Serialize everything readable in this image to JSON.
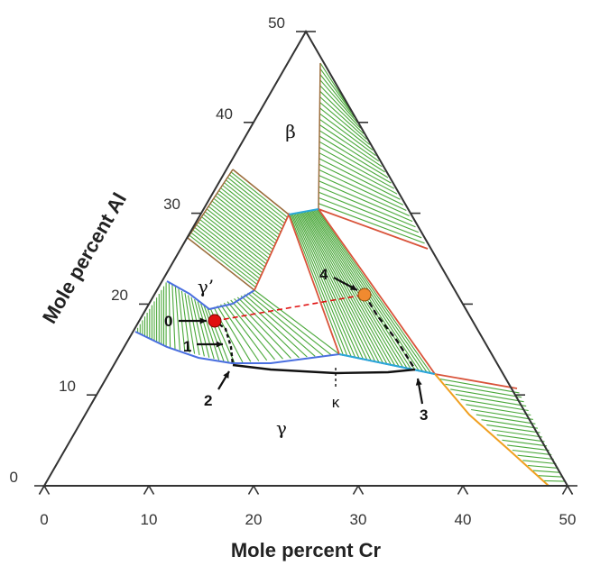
{
  "axes": {
    "x_label": "Mole percent Cr",
    "y_label": "Mole percent Al",
    "x_ticks": [
      "0",
      "10",
      "20",
      "30",
      "40",
      "50"
    ],
    "y_ticks": [
      "0",
      "10",
      "20",
      "30",
      "40",
      "50"
    ]
  },
  "phases": {
    "beta": "β",
    "gamma_prime": "γ’",
    "gamma": "γ"
  },
  "points": {
    "p0": "0",
    "p1": "1",
    "p2": "2",
    "p3": "3",
    "p4": "4",
    "kappa": "κ"
  },
  "colors": {
    "tie_line": "#4aa83a",
    "phase_boundary_red": "#d9533a",
    "phase_boundary_brown": "#9b6b3a",
    "gamma_boundary": "#4a6fe0",
    "cyan_boundary": "#2aa8d8",
    "orange_boundary": "#f0a020",
    "point0": "#e01010",
    "point4": "#f08a30"
  }
}
